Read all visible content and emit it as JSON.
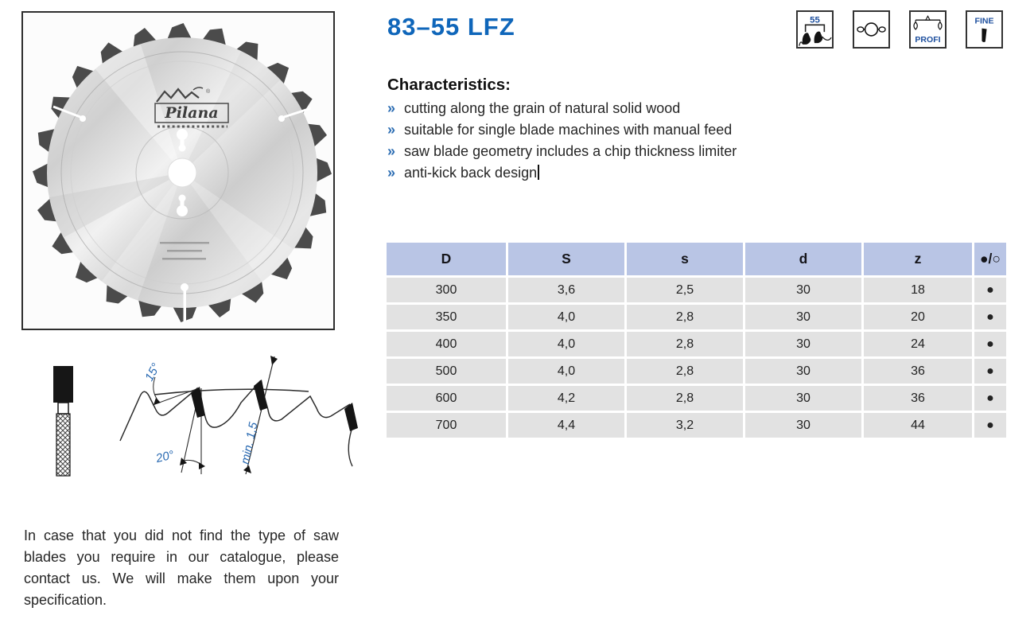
{
  "colors": {
    "accent_blue": "#0f66ba",
    "icon_text_blue": "#1d4f9e",
    "table_header_bg": "#b9c5e5",
    "table_row_bg": "#e2e2e2"
  },
  "header": {
    "title": "83–55 LFZ"
  },
  "badges": {
    "tooth_count_label": "55",
    "profi_label": "PROFI",
    "fine_label": "FINE"
  },
  "characteristics": {
    "heading": "Characteristics:",
    "bullet": "»",
    "items": [
      "cutting along the grain of natural solid wood",
      "suitable for single blade machines with manual feed",
      "saw blade geometry includes a chip thickness limiter",
      "anti-kick back design"
    ]
  },
  "table": {
    "headers": [
      "D",
      "S",
      "s",
      "d",
      "z",
      "●/○"
    ],
    "rows": [
      [
        "300",
        "3,6",
        "2,5",
        "30",
        "18",
        "●"
      ],
      [
        "350",
        "4,0",
        "2,8",
        "30",
        "20",
        "●"
      ],
      [
        "400",
        "4,0",
        "2,8",
        "30",
        "24",
        "●"
      ],
      [
        "500",
        "4,0",
        "2,8",
        "30",
        "36",
        "●"
      ],
      [
        "600",
        "4,2",
        "2,8",
        "30",
        "36",
        "●"
      ],
      [
        "700",
        "4,4",
        "3,2",
        "30",
        "44",
        "●"
      ]
    ]
  },
  "diagram": {
    "labels": {
      "clearance_angle": "15°",
      "rake_angle": "20°",
      "limiter_clearance": "min. 1,5"
    }
  },
  "blade": {
    "logo": "Pilana"
  },
  "note": "In case that you did not find the type of saw blades you require in our catalogue, please contact us. We will make them upon your specification."
}
